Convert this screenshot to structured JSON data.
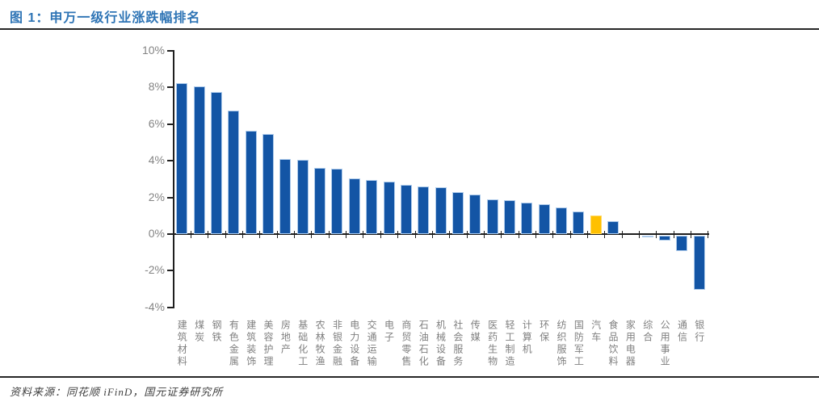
{
  "header": {
    "title": "图 1：申万一级行业涨跌幅排名"
  },
  "footer": {
    "source": "资料来源：同花顺 iFinD，国元证券研究所"
  },
  "colors": {
    "bar": "#1355A5",
    "bar_border": "#AECBEB",
    "highlight_bar": "#FFC000",
    "highlight_border": "#FFD75E",
    "title_text": "#2E74B5",
    "axis_label": "#848484",
    "category_label": "#7F7F7F",
    "axis_line": "#1F1F1F"
  },
  "chart_data": {
    "type": "bar",
    "title": "申万一级行业涨跌幅排名",
    "xlabel": "",
    "ylabel": "",
    "unit": "%",
    "ylim": [
      -4,
      10
    ],
    "y_tick_values": [
      10,
      8,
      6,
      4,
      2,
      0,
      -2,
      -4
    ],
    "y_tick_labels": [
      "10%",
      "8%",
      "6%",
      "4%",
      "2%",
      "0%",
      "-2%",
      "-4%"
    ],
    "grid": false,
    "legend": "none",
    "categories": [
      "建筑材料",
      "煤炭",
      "钢铁",
      "有色金属",
      "建筑装饰",
      "美容护理",
      "房地产",
      "基础化工",
      "农林牧渔",
      "非银金融",
      "电力设备",
      "交通运输",
      "电子",
      "商贸零售",
      "石油石化",
      "机械设备",
      "社会服务",
      "传媒",
      "医药生物",
      "轻工制造",
      "计算机",
      "环保",
      "纺织服饰",
      "国防军工",
      "汽车",
      "食品饮料",
      "家用电器",
      "综合",
      "公用事业",
      "通信",
      "银行"
    ],
    "values": [
      8.25,
      8.05,
      7.75,
      6.75,
      5.65,
      5.45,
      4.1,
      4.05,
      3.6,
      3.55,
      3.05,
      2.95,
      2.85,
      2.7,
      2.6,
      2.55,
      2.3,
      2.15,
      1.9,
      1.85,
      1.7,
      1.65,
      1.45,
      1.25,
      1.0,
      0.7,
      0.0,
      -0.1,
      -0.25,
      -0.85,
      -2.95
    ],
    "highlight_index": 24,
    "highlight_category": "汽车"
  }
}
